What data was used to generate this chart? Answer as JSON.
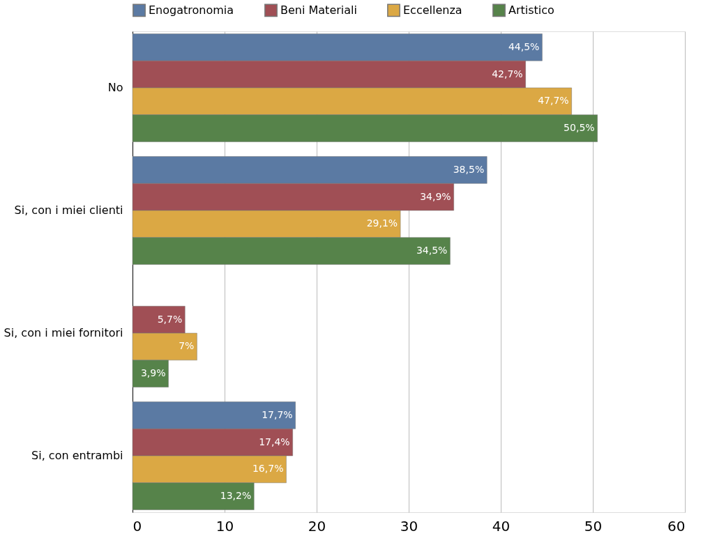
{
  "chart_data": {
    "type": "bar",
    "orientation": "horizontal",
    "categories": [
      "No",
      "Si, con i miei clienti",
      "Si, con i miei fornitori",
      "Si, con entrambi"
    ],
    "series": [
      {
        "name": "Enogatronomia",
        "color": "#5b7aa3",
        "values": [
          44.5,
          38.5,
          null,
          17.7
        ],
        "value_labels": [
          "44,5%",
          "38,5%",
          null,
          "17,7%"
        ]
      },
      {
        "name": "Beni Materiali",
        "color": "#a04f55",
        "values": [
          42.7,
          34.9,
          5.7,
          17.4
        ],
        "value_labels": [
          "42,7%",
          "34,9%",
          "5,7%",
          "17,4%"
        ]
      },
      {
        "name": "Eccellenza",
        "color": "#dba844",
        "values": [
          47.7,
          29.1,
          7,
          16.7
        ],
        "value_labels": [
          "47,7%",
          "29,1%",
          "7%",
          "16,7%"
        ]
      },
      {
        "name": "Artistico",
        "color": "#56834a",
        "values": [
          50.5,
          34.5,
          3.9,
          13.2
        ],
        "value_labels": [
          "50,5%",
          "34,5%",
          "3,9%",
          "13,2%"
        ]
      }
    ],
    "xlim": [
      0,
      60
    ],
    "xticks": [
      0,
      10,
      20,
      30,
      40,
      50,
      60
    ],
    "grid": "x",
    "legend": "top"
  }
}
